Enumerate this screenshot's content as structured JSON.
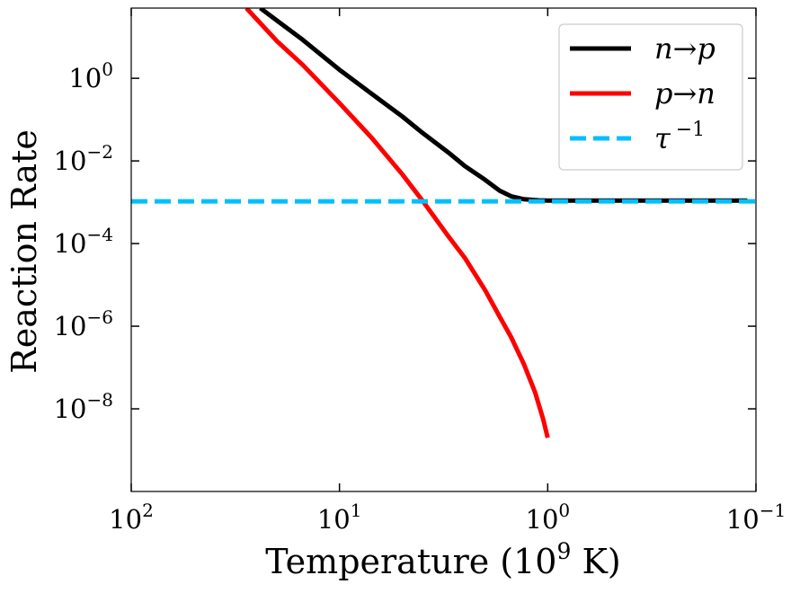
{
  "chart_data": {
    "type": "line",
    "title": "",
    "xlabel": "Temperature (10",
    "xlabel_sup": "9",
    "xlabel_suffix": " K)",
    "ylabel": "Reaction Rate",
    "xscale": "log",
    "yscale": "log",
    "x_reversed": true,
    "xlim": [
      100,
      0.1
    ],
    "ylim": [
      1e-10,
      50
    ],
    "grid": false,
    "legend_position": "top-right",
    "x_ticks": [
      {
        "value": 100,
        "base": "10",
        "exp": "2"
      },
      {
        "value": 10,
        "base": "10",
        "exp": "1"
      },
      {
        "value": 1,
        "base": "10",
        "exp": "0"
      },
      {
        "value": 0.1,
        "base": "10",
        "exp": "−1"
      }
    ],
    "y_ticks": [
      {
        "value": 1,
        "base": "10",
        "exp": "0"
      },
      {
        "value": 0.01,
        "base": "10",
        "exp": "−2"
      },
      {
        "value": 0.0001,
        "base": "10",
        "exp": "−4"
      },
      {
        "value": 1e-06,
        "base": "10",
        "exp": "−6"
      },
      {
        "value": 1e-08,
        "base": "10",
        "exp": "−8"
      }
    ],
    "series": [
      {
        "name": "n → p",
        "legend_a": "n",
        "legend_arrow": "→",
        "legend_b": "p",
        "color": "#000000",
        "style": "solid",
        "x": [
          24,
          20,
          15,
          10,
          7,
          5,
          4,
          3,
          2.5,
          2,
          1.7,
          1.5,
          1.3,
          1.1,
          1.0,
          0.8,
          0.6,
          0.4,
          0.2,
          0.11
        ],
        "y": [
          50,
          25,
          8.5,
          1.6,
          0.42,
          0.12,
          0.048,
          0.016,
          0.0075,
          0.0035,
          0.0019,
          0.0014,
          0.00118,
          0.00111,
          0.0011,
          0.0011,
          0.0011,
          0.0011,
          0.0011,
          0.0011
        ]
      },
      {
        "name": "p → n",
        "legend_a": "p",
        "legend_arrow": "→",
        "legend_b": "n",
        "color": "#ff0000",
        "style": "solid",
        "x": [
          28,
          20,
          15,
          10,
          7,
          5,
          4,
          3,
          2.5,
          2,
          1.7,
          1.5,
          1.3,
          1.15,
          1.05,
          1.0
        ],
        "y": [
          50,
          8,
          2.1,
          0.25,
          0.036,
          0.0048,
          0.0011,
          0.00015,
          4.5e-05,
          7.5e-06,
          1.7e-06,
          5.5e-07,
          1.2e-07,
          2.5e-08,
          5.5e-09,
          2e-09
        ]
      },
      {
        "name": "τ⁻¹",
        "legend_a": "τ",
        "legend_sup": "−1",
        "color": "#00bfff",
        "style": "dashed",
        "x": [
          100,
          0.1
        ],
        "y": [
          0.00105,
          0.00105
        ]
      }
    ]
  }
}
